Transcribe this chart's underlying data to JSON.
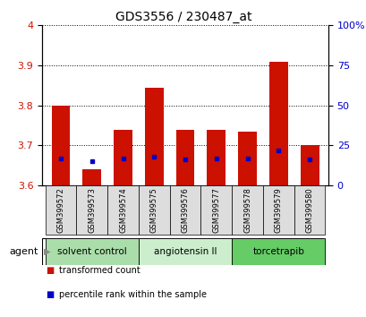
{
  "title": "GDS3556 / 230487_at",
  "samples": [
    "GSM399572",
    "GSM399573",
    "GSM399574",
    "GSM399575",
    "GSM399576",
    "GSM399577",
    "GSM399578",
    "GSM399579",
    "GSM399580"
  ],
  "transformed_count": [
    3.8,
    3.64,
    3.74,
    3.845,
    3.74,
    3.74,
    3.735,
    3.91,
    3.7
  ],
  "percentile_rank": [
    17,
    15,
    17,
    18,
    16,
    17,
    17,
    22,
    16
  ],
  "ylim_left": [
    3.6,
    4.0
  ],
  "ylim_right": [
    0,
    100
  ],
  "yticks_left": [
    3.6,
    3.7,
    3.8,
    3.9,
    4.0
  ],
  "ytick_labels_left": [
    "3.6",
    "3.7",
    "3.8",
    "3.9",
    "4"
  ],
  "yticks_right": [
    0,
    25,
    50,
    75,
    100
  ],
  "ytick_labels_right": [
    "0",
    "25",
    "50",
    "75",
    "100%"
  ],
  "bar_color": "#cc1100",
  "percentile_color": "#0000cc",
  "bar_width": 0.6,
  "agent_groups": [
    {
      "label": "solvent control",
      "indices": [
        0,
        1,
        2
      ],
      "color": "#aaddaa"
    },
    {
      "label": "angiotensin II",
      "indices": [
        3,
        4,
        5
      ],
      "color": "#cceecc"
    },
    {
      "label": "torcetrapib",
      "indices": [
        6,
        7,
        8
      ],
      "color": "#66cc66"
    }
  ],
  "legend_items": [
    {
      "label": "transformed count",
      "color": "#cc1100"
    },
    {
      "label": "percentile rank within the sample",
      "color": "#0000cc"
    }
  ],
  "ylabel_left_color": "#cc1100",
  "ylabel_right_color": "#0000cc",
  "background_plot": "#ffffff",
  "background_label": "#dddddd",
  "agent_label": "agent",
  "baseline": 3.6
}
